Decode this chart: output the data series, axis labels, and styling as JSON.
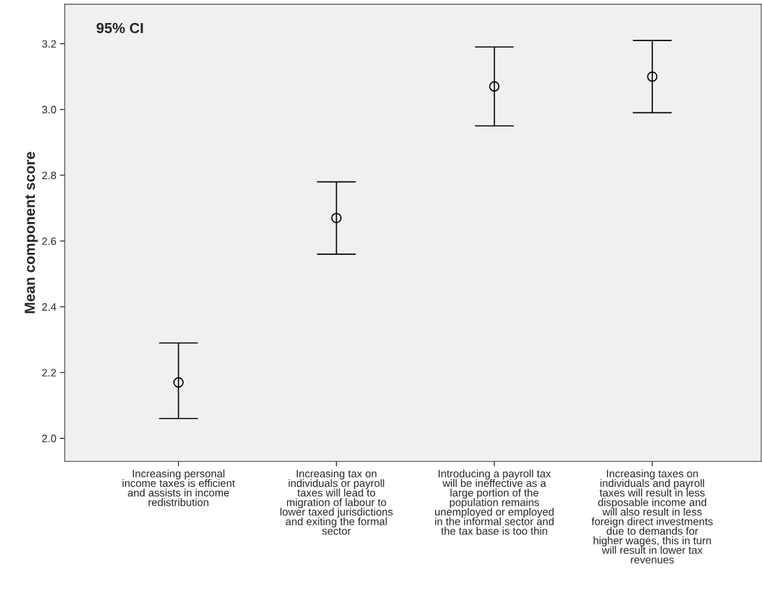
{
  "chart_data": {
    "type": "scatter",
    "ylabel": "Mean component score",
    "categories": [
      "Increasing personal\nincome taxes is efficient\nand assists in income\nredistribution",
      "Increasing tax on\nindividuals or payroll\ntaxes will lead to\nmigration of labour to\nlower taxed jurisdictions\nand exiting the formal\nsector",
      "Introducing a payroll tax\nwill be ineffective as a\nlarge portion of the\npopulation remains\nunemployed or employed\nin the informal sector and\nthe tax base is too thin",
      "Increasing taxes on\nindividuals and payroll\ntaxes will result in less\ndisposable income and\nwill also result in less\nforeign direct investments\ndue to demands for\nhigher wages, this in turn\nwill result in lower tax\nrevenues"
    ],
    "values": [
      2.17,
      2.67,
      3.07,
      3.1
    ],
    "errors": [
      [
        2.06,
        2.29
      ],
      [
        2.56,
        2.78
      ],
      [
        2.95,
        3.19
      ],
      [
        2.99,
        3.21
      ]
    ],
    "color": "#000000",
    "marker": "circle",
    "grid": false,
    "ylim": [
      1.93,
      3.32
    ],
    "yticks": [
      {
        "value": 2.0,
        "label": "2.0"
      },
      {
        "value": 2.2,
        "label": "2.2"
      },
      {
        "value": 2.4,
        "label": "2.4"
      },
      {
        "value": 2.6,
        "label": "2.6"
      },
      {
        "value": 2.8,
        "label": "2.8"
      },
      {
        "value": 3.0,
        "label": "3.0"
      },
      {
        "value": 3.2,
        "label": "3.2"
      }
    ],
    "annotations": [
      "95% CI"
    ]
  }
}
